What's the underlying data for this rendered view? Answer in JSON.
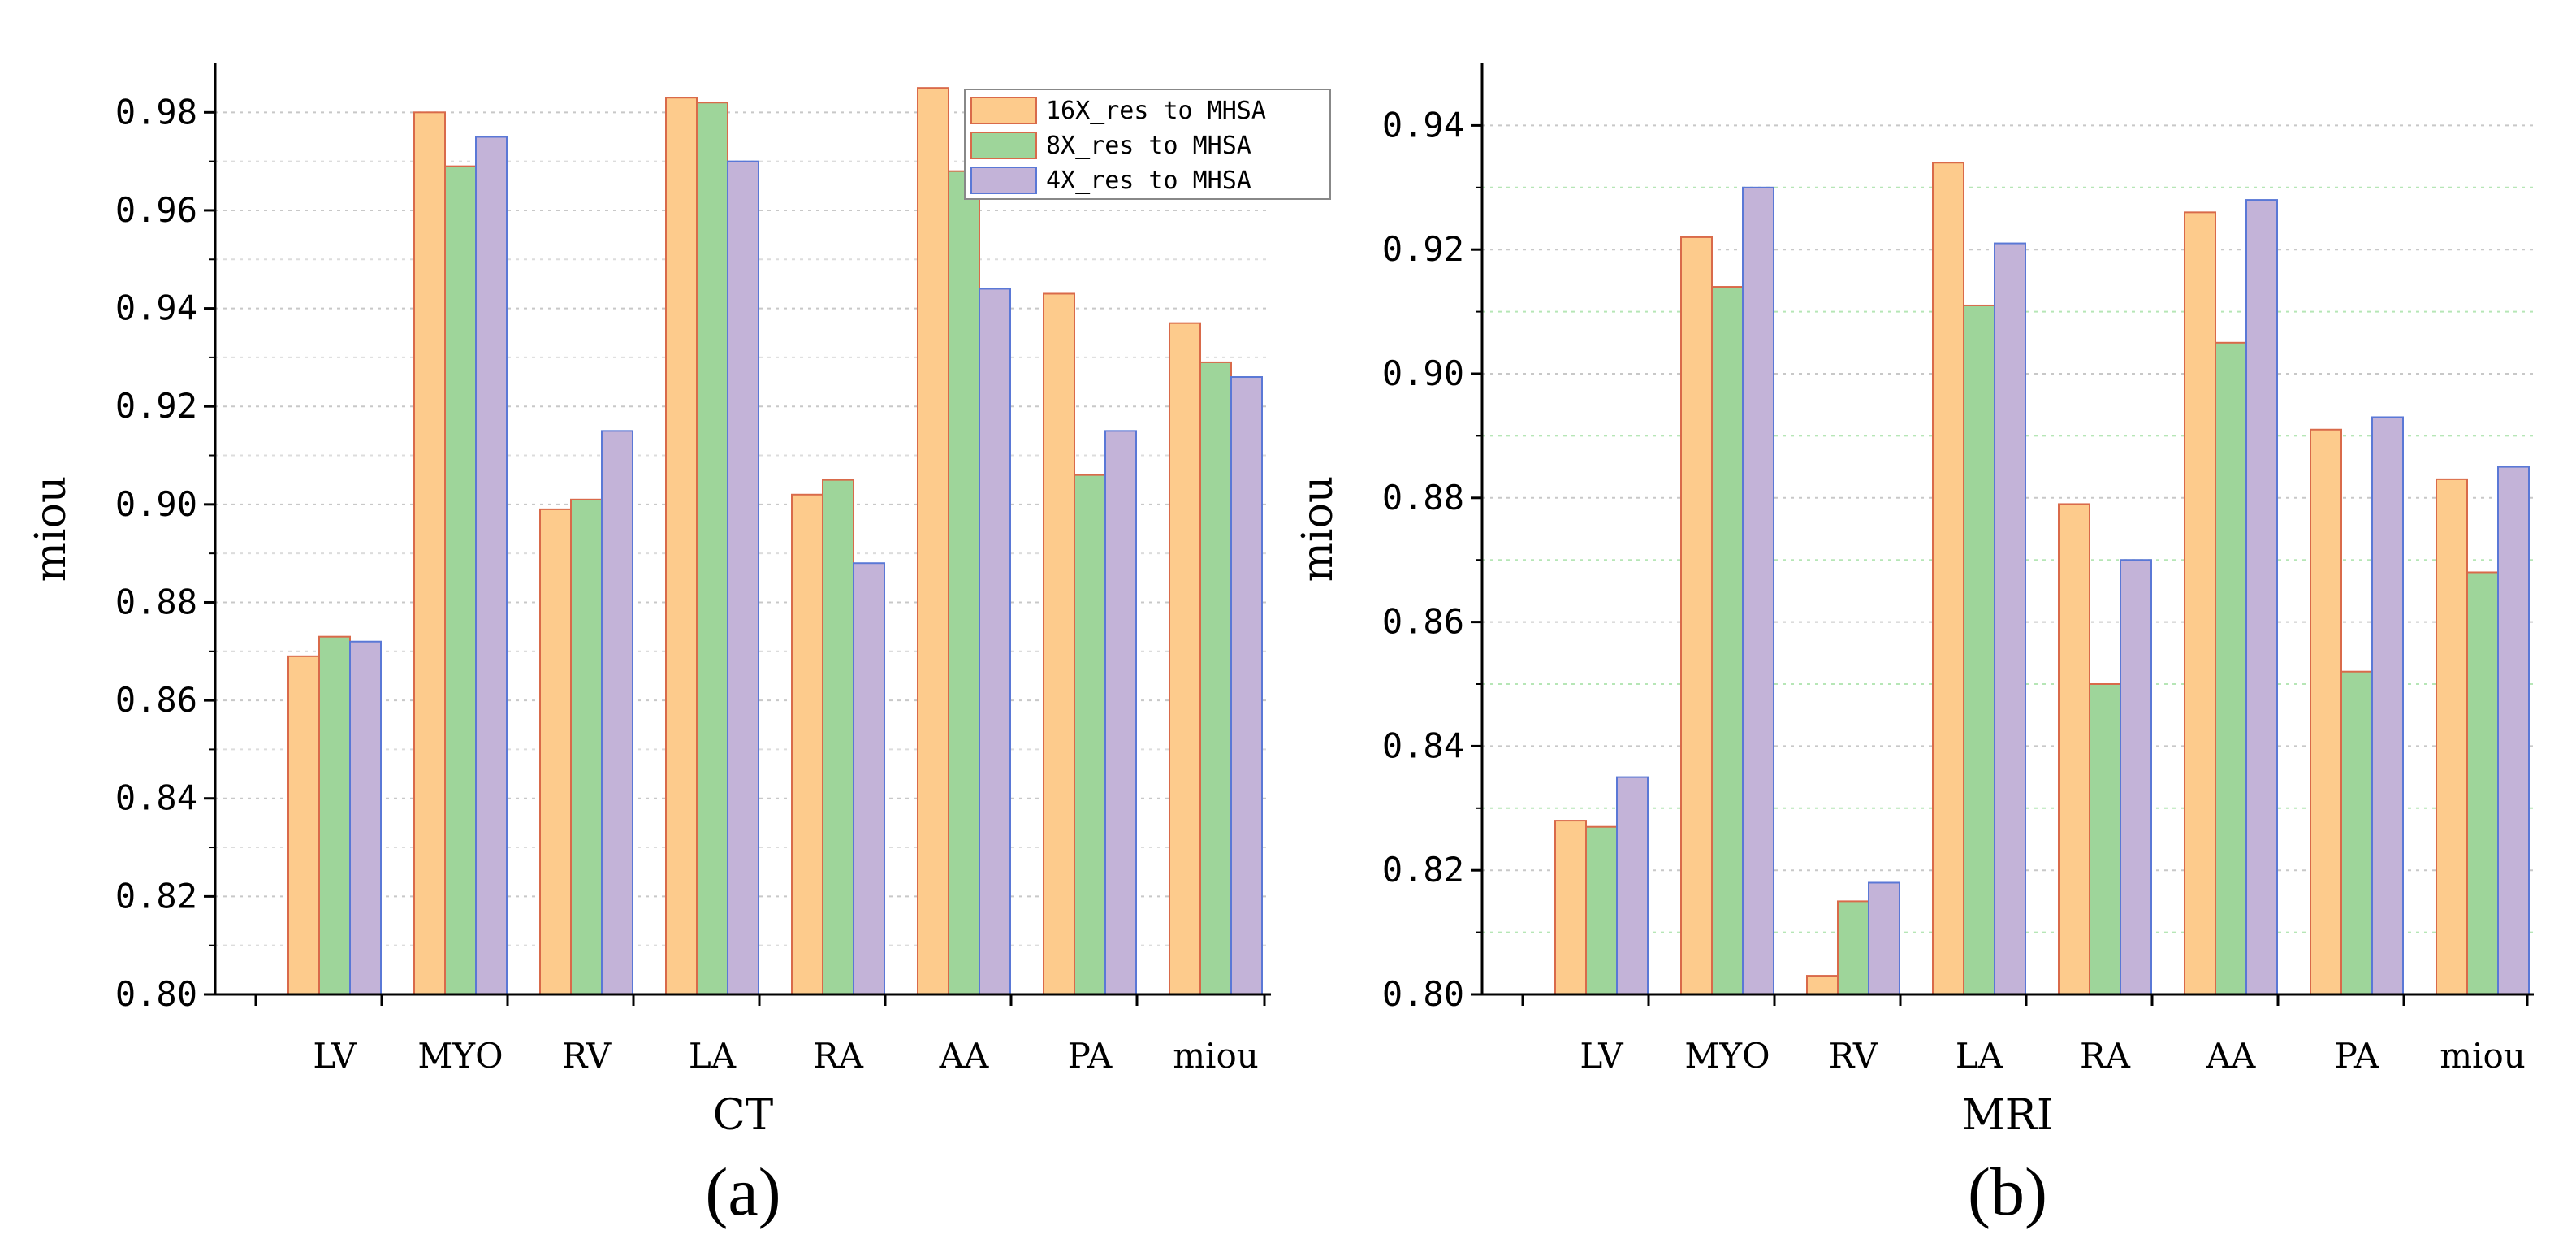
{
  "chart_data": [
    {
      "type": "bar",
      "panel_label": "(a)",
      "xlabel": "CT",
      "ylabel": "miou",
      "ylim": [
        0.8,
        0.99
      ],
      "yticks": [
        "0.80",
        "0.82",
        "0.84",
        "0.86",
        "0.88",
        "0.90",
        "0.92",
        "0.94",
        "0.96",
        "0.98"
      ],
      "categories": [
        "LV",
        "MYO",
        "RV",
        "LA",
        "RA",
        "AA",
        "PA",
        "miou"
      ],
      "legend": "top-right",
      "series": [
        {
          "name": "16X_res to MHSA",
          "color": "#fdcb8c",
          "edge": "#d96a4a",
          "values": [
            0.869,
            0.98,
            0.899,
            0.983,
            0.902,
            0.985,
            0.943,
            0.937
          ]
        },
        {
          "name": "8X_res to MHSA",
          "color": "#9ed59a",
          "edge": "#d96a4a",
          "values": [
            0.873,
            0.969,
            0.901,
            0.982,
            0.905,
            0.968,
            0.906,
            0.929
          ]
        },
        {
          "name": "4X_res to MHSA",
          "color": "#c3b3d8",
          "edge": "#5a78d6",
          "values": [
            0.872,
            0.975,
            0.915,
            0.97,
            0.888,
            0.944,
            0.915,
            0.926
          ]
        }
      ]
    },
    {
      "type": "bar",
      "panel_label": "(b)",
      "xlabel": "MRI",
      "ylabel": "miou",
      "ylim": [
        0.8,
        0.95
      ],
      "yticks": [
        "0.80",
        "0.82",
        "0.84",
        "0.86",
        "0.88",
        "0.90",
        "0.92",
        "0.94"
      ],
      "categories": [
        "LV",
        "MYO",
        "RV",
        "LA",
        "RA",
        "AA",
        "PA",
        "miou"
      ],
      "series": [
        {
          "name": "16X_res to MHSA",
          "color": "#fdcb8c",
          "edge": "#d96a4a",
          "values": [
            0.828,
            0.922,
            0.803,
            0.934,
            0.879,
            0.926,
            0.891,
            0.883
          ]
        },
        {
          "name": "8X_res to MHSA",
          "color": "#9ed59a",
          "edge": "#d96a4a",
          "values": [
            0.827,
            0.914,
            0.815,
            0.911,
            0.85,
            0.905,
            0.852,
            0.868
          ]
        },
        {
          "name": "4X_res to MHSA",
          "color": "#c3b3d8",
          "edge": "#5a78d6",
          "values": [
            0.835,
            0.93,
            0.818,
            0.921,
            0.87,
            0.928,
            0.893,
            0.885
          ]
        }
      ]
    }
  ]
}
